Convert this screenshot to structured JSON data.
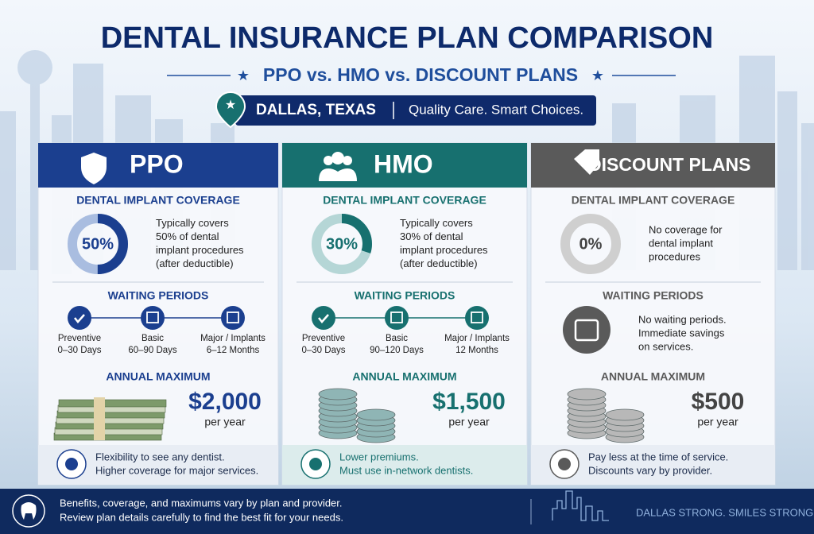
{
  "title": "DENTAL INSURANCE PLAN COMPARISON",
  "subtitle": "PPO vs. HMO vs. DISCOUNT PLANS",
  "location": {
    "place": "DALLAS, TEXAS",
    "tagline": "Quality Care. Smart Choices."
  },
  "plans": [
    {
      "name": "PPO",
      "color": "#1b3f8f",
      "light": "#a9bde0",
      "coverage_heading": "DENTAL IMPLANT COVERAGE",
      "coverage": {
        "value": 50,
        "label": "50%"
      },
      "coverage_text": [
        "Typically covers",
        "50% of dental",
        "implant procedures",
        "(after deductible)"
      ],
      "waiting_heading": "WAITING PERIODS",
      "waiting": [
        {
          "label": "Preventive",
          "period": "0–30 Days"
        },
        {
          "label": "Basic",
          "period": "60–90 Days"
        },
        {
          "label": "Major / Implants",
          "period": "6–12 Months"
        }
      ],
      "max_heading": "ANNUAL MAXIMUM",
      "max_amount": "$2,000",
      "max_unit": "per year",
      "notes": [
        "Flexibility to see any dentist.",
        "Higher coverage for major services."
      ]
    },
    {
      "name": "HMO",
      "color": "#17706f",
      "light": "#b5d6d6",
      "coverage_heading": "DENTAL IMPLANT COVERAGE",
      "coverage": {
        "value": 30,
        "label": "30%"
      },
      "coverage_text": [
        "Typically covers",
        "30% of dental",
        "implant procedures",
        "(after deductible)"
      ],
      "waiting_heading": "WAITING PERIODS",
      "waiting": [
        {
          "label": "Preventive",
          "period": "0–30 Days"
        },
        {
          "label": "Basic",
          "period": "90–120 Days"
        },
        {
          "label": "Major / Implants",
          "period": "12 Months"
        }
      ],
      "max_heading": "ANNUAL MAXIMUM",
      "max_amount": "$1,500",
      "max_unit": "per year",
      "notes": [
        "Lower premiums.",
        "Must use in-network dentists."
      ]
    },
    {
      "name": "DISCOUNT PLANS",
      "color": "#5a5a5a",
      "light": "#cfcfcf",
      "coverage_heading": "DENTAL IMPLANT COVERAGE",
      "coverage": {
        "value": 0,
        "label": "0%"
      },
      "coverage_text": [
        "No coverage for",
        "dental implant",
        "procedures"
      ],
      "waiting_heading": "WAITING PERIODS",
      "waiting_text": [
        "No waiting periods.",
        "Immediate savings",
        "on services."
      ],
      "max_heading": "ANNUAL MAXIMUM",
      "max_amount": "$500",
      "max_unit": "per year",
      "notes": [
        "Pay less at the time of service.",
        "Discounts vary by provider."
      ]
    }
  ],
  "footer": {
    "notes": [
      "Benefits, coverage, and maximums vary by plan and provider.",
      "Review plan details carefully to find the best fit for your needs."
    ],
    "slogan": "DALLAS STRONG. SMILES STRONGER."
  }
}
